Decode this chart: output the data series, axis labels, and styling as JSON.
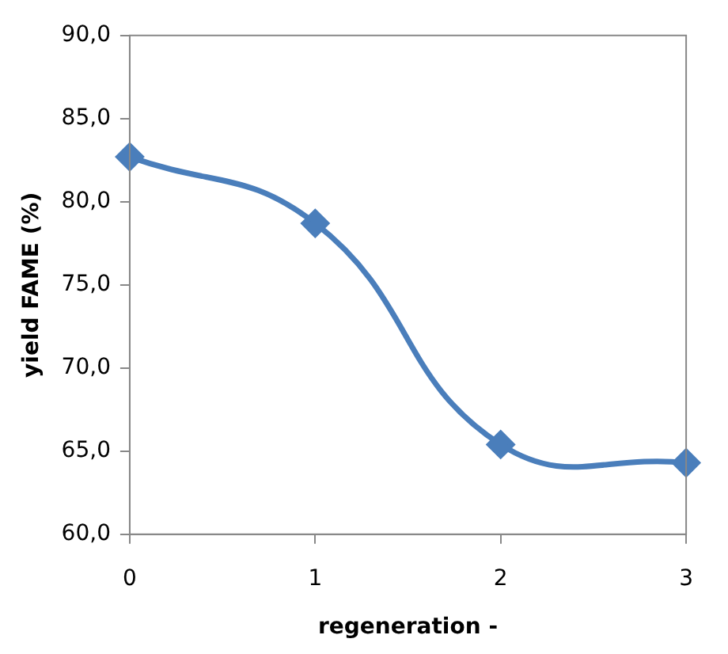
{
  "chart_data": {
    "type": "line",
    "xlabel": "regeneration -",
    "ylabel": "yield FAME (%)",
    "x": [
      0,
      1,
      2,
      3
    ],
    "series": [
      {
        "color": "#4a7ebb",
        "values": [
          82.7,
          78.7,
          65.4,
          64.3
        ]
      }
    ],
    "xlim": [
      0,
      3
    ],
    "xticks": [
      0,
      1,
      2,
      3
    ],
    "ylim": [
      60,
      90
    ],
    "yticks": [
      {
        "value": 60,
        "label": "60,0"
      },
      {
        "value": 65,
        "label": "65,0"
      },
      {
        "value": 70,
        "label": "70,0"
      },
      {
        "value": 75,
        "label": "75,0"
      },
      {
        "value": 80,
        "label": "80,0"
      },
      {
        "value": 85,
        "label": "85,0"
      },
      {
        "value": 90,
        "label": "90,0"
      }
    ],
    "grid": false,
    "legend": false,
    "marker": "diamond",
    "line_style": "solid"
  }
}
